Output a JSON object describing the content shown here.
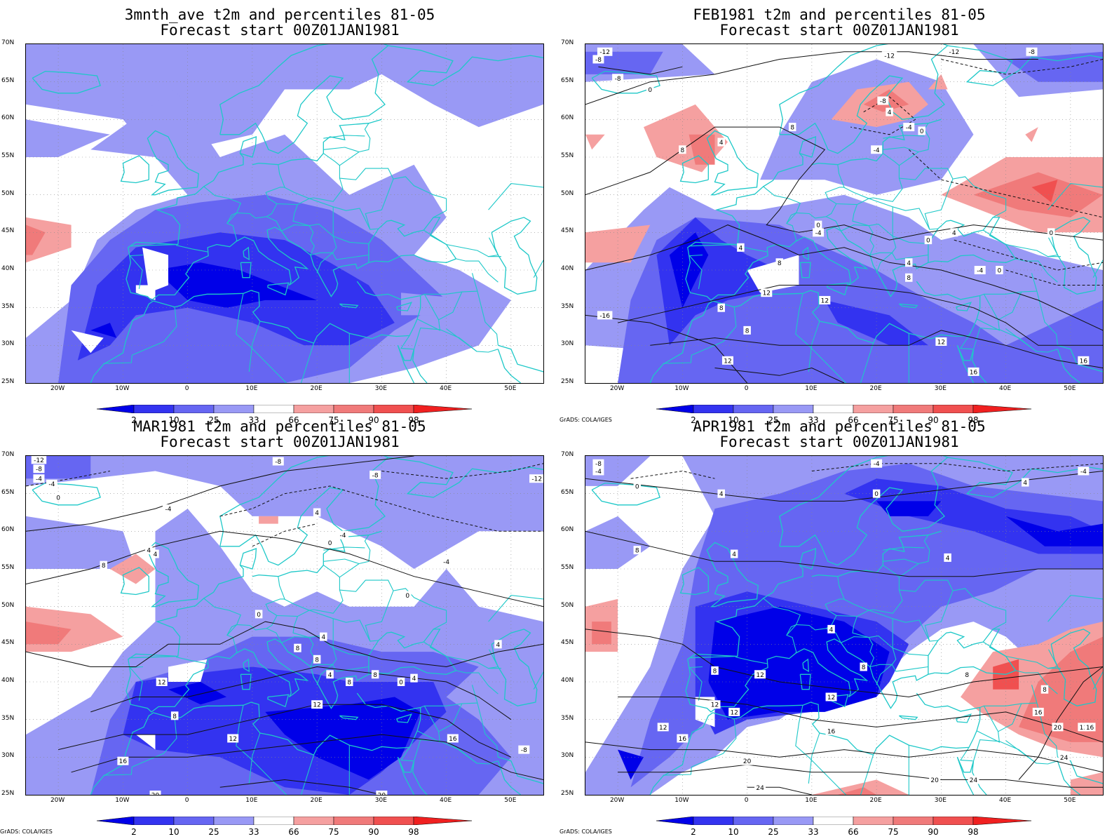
{
  "panels": [
    {
      "title1": "3mnth_ave t2m and percentiles 81-05",
      "title2": "Forecast start 00Z01JAN1981",
      "credit": ""
    },
    {
      "title1": "FEB1981 t2m and percentiles 81-05",
      "title2": "Forecast start 00Z01JAN1981",
      "credit": "GrADS: COLA/IGES"
    },
    {
      "title1": "MAR1981 t2m and percentiles 81-05",
      "title2": "Forecast start 00Z01JAN1981",
      "credit": "GrADS: COLA/IGES"
    },
    {
      "title1": "APR1981 t2m and percentiles 81-05",
      "title2": "Forecast start 00Z01JAN1981",
      "credit": "GrADS: COLA/IGES"
    }
  ],
  "lat_labels": [
    "70N",
    "65N",
    "60N",
    "55N",
    "50N",
    "45N",
    "40N",
    "35N",
    "30N",
    "25N"
  ],
  "lon_labels": [
    "20W",
    "10W",
    "0",
    "10E",
    "20E",
    "30E",
    "40E",
    "50E"
  ],
  "colorbar": {
    "labels": [
      "2",
      "10",
      "25",
      "33",
      "66",
      "75",
      "90",
      "98"
    ],
    "colors": [
      "#0000e8",
      "#3333f0",
      "#6666f2",
      "#9999f5",
      "#ffffff",
      "#f5a0a0",
      "#f07a7a",
      "#f05050",
      "#f02020"
    ]
  },
  "contour_labels": {
    "feb": [
      "-12",
      "-8",
      "-8",
      "0",
      "-8",
      "-12",
      "-12",
      "-8",
      "8",
      "4",
      "-4",
      "0",
      "8",
      "4",
      "-4",
      "0",
      "4",
      "8",
      "12",
      "12",
      "8",
      "8",
      "12",
      "-4",
      "0",
      "4",
      "8",
      "16",
      "12",
      "16",
      "-16",
      "-4",
      "0",
      "0",
      "4"
    ],
    "mar": [
      "-12",
      "-8",
      "-4",
      "-4",
      "0",
      "-4",
      "4",
      "-8",
      "-8",
      "-4",
      "0",
      "4",
      "8",
      "-4",
      "0",
      "0",
      "4",
      "8",
      "4",
      "8",
      "0",
      "4",
      "8",
      "12",
      "8",
      "12",
      "12",
      "16",
      "16",
      "20",
      "4",
      "4",
      "-8",
      "-12",
      "8",
      "20"
    ],
    "apr": [
      "-8",
      "-4",
      "0",
      "-4",
      "0",
      "4",
      "4",
      "4",
      "4",
      "8",
      "8",
      "12",
      "12",
      "12",
      "16",
      "16",
      "20",
      "20",
      "24",
      "24",
      "12",
      "8",
      "8",
      "16",
      "20",
      "24",
      "16",
      "12",
      "12",
      "8",
      "4",
      "-4"
    ]
  }
}
